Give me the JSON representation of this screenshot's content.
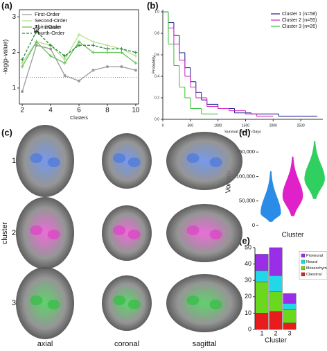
{
  "chart_data": [
    {
      "type": "line",
      "panel_label": "(a)",
      "x_label": "Clusters",
      "y_label": "-log(p-value)",
      "x": [
        2,
        3,
        4,
        5,
        6,
        7,
        8,
        9,
        10
      ],
      "series": [
        {
          "name": "First-Order",
          "color": "#9a9a9a",
          "dash": false,
          "values": [
            0.9,
            2.2,
            2.1,
            1.35,
            1.2,
            1.5,
            1.6,
            1.6,
            1.5
          ]
        },
        {
          "name": "Second-Order",
          "color": "#b5e08a",
          "dash": false,
          "values": [
            1.7,
            2.3,
            2.2,
            1.8,
            2.5,
            2.3,
            2.2,
            2.1,
            1.9
          ]
        },
        {
          "name": "Third-Order",
          "color": "#66c255",
          "dash": false,
          "values": [
            1.6,
            2.3,
            1.9,
            1.7,
            2.3,
            2.0,
            2.0,
            2.0,
            1.7
          ]
        },
        {
          "name": "Fourth-Order",
          "color": "#1e8a3a",
          "dash": true,
          "values": [
            1.8,
            2.6,
            2.2,
            1.9,
            2.2,
            2.2,
            2.1,
            2.1,
            2.0
          ]
        }
      ],
      "hline": 1.3,
      "annotation": {
        "text": "chosen",
        "x": 3,
        "y": 2.65
      },
      "xlim": [
        1.8,
        10.2
      ],
      "ylim": [
        0.55,
        3.2
      ],
      "xticks": [
        2,
        4,
        6,
        8,
        10
      ],
      "yticks": [
        1,
        2,
        3
      ]
    },
    {
      "type": "step",
      "panel_label": "(b)",
      "x_label": "Survival Time in Days",
      "y_label": "Probability",
      "series": [
        {
          "name": "Cluster 1 (n=58)",
          "color": "#1a1a8c",
          "x": [
            0,
            100,
            200,
            300,
            400,
            500,
            600,
            700,
            800,
            1000,
            1300,
            1600,
            2100,
            2800
          ],
          "values": [
            1,
            0.9,
            0.78,
            0.62,
            0.48,
            0.35,
            0.25,
            0.18,
            0.14,
            0.1,
            0.06,
            0.05,
            0.03,
            0.03
          ]
        },
        {
          "name": "Cluster 2 (n=55)",
          "color": "#d020c0",
          "x": [
            0,
            100,
            200,
            300,
            400,
            500,
            600,
            800,
            1000,
            1200,
            1500,
            1700,
            2000
          ],
          "values": [
            1,
            0.85,
            0.7,
            0.55,
            0.4,
            0.3,
            0.2,
            0.12,
            0.1,
            0.08,
            0.05,
            0.03,
            0.03
          ]
        },
        {
          "name": "Cluster 3 (n=26)",
          "color": "#30c030",
          "x": [
            0,
            100,
            200,
            300,
            400,
            500,
            700,
            1000
          ],
          "values": [
            1,
            0.7,
            0.5,
            0.3,
            0.2,
            0.1,
            0.05,
            0.05
          ]
        }
      ],
      "xlim": [
        0,
        2900
      ],
      "ylim": [
        0,
        1.02
      ],
      "xticks": [
        0,
        500,
        1000,
        1500,
        2000,
        2500
      ],
      "yticks": [
        {
          "value": 0,
          "label": "0.0"
        },
        0.2,
        0.4,
        0.6,
        0.8,
        {
          "value": 1,
          "label": "1.0"
        }
      ],
      "legend": "top-right"
    },
    {
      "type": "violin",
      "panel_label": "(d)",
      "x_label": "Cluster",
      "y_label": "Volume",
      "categories": [
        null,
        null,
        null
      ],
      "colors": [
        "#2b8ce8",
        "#e020c8",
        "#30d060"
      ],
      "mins": [
        8000,
        20000,
        55000
      ],
      "modes": [
        25000,
        60000,
        95000
      ],
      "maxs": [
        110000,
        140000,
        172000
      ],
      "ylim": [
        0,
        180000
      ],
      "yticks": [
        0,
        {
          "value": 50000,
          "label": "50,000"
        },
        {
          "value": 100000,
          "label": "100,000"
        },
        {
          "value": 150000,
          "label": "150,000"
        }
      ]
    },
    {
      "type": "stacked-bar",
      "panel_label": "(e)",
      "x_label": "Cluster",
      "categories": [
        "1",
        "2",
        "3"
      ],
      "series": [
        {
          "name": "Classical",
          "color": "#e81c1c",
          "values": [
            10,
            11,
            4
          ]
        },
        {
          "name": "Mesenchymal",
          "color": "#6ad81c",
          "values": [
            19,
            12,
            8
          ]
        },
        {
          "name": "Neural",
          "color": "#22d8e8",
          "values": [
            7,
            10,
            4
          ]
        },
        {
          "name": "Proneural",
          "color": "#9a2ee8",
          "values": [
            10,
            17,
            6
          ]
        }
      ],
      "ylim": [
        0,
        50
      ],
      "yticks": [
        0,
        10,
        20,
        30,
        40,
        50
      ],
      "legend": "right"
    }
  ],
  "brain_panel": {
    "label": "(c)",
    "rows": [
      "1",
      "2",
      "3"
    ],
    "row_axis_label": "cluster",
    "views": [
      "axial",
      "coronal",
      "sagittal"
    ]
  }
}
